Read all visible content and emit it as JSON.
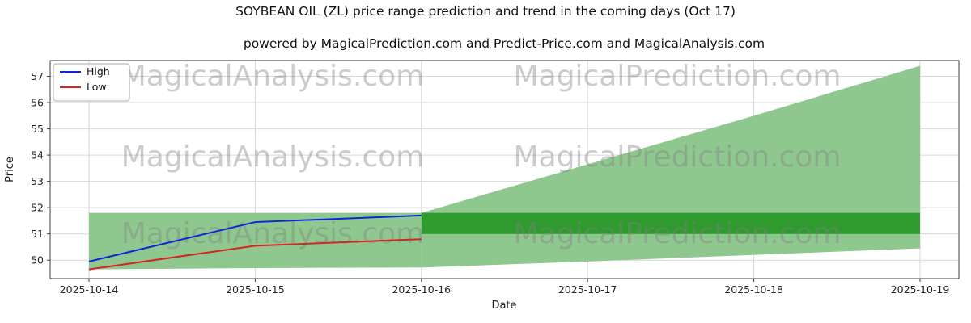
{
  "subtitle": "powered by MagicalPrediction.com and Predict-Price.com and MagicalAnalysis.com",
  "watermarks": {
    "left": "MagicalAnalysis.com",
    "right": "MagicalPrediction.com",
    "color": "#cccccc"
  },
  "legend": [
    {
      "label": "High",
      "color": "#1024d8"
    },
    {
      "label": "Low",
      "color": "#d62323"
    }
  ],
  "chart_data": {
    "type": "line",
    "title": "SOYBEAN OIL (ZL) price range prediction and trend in the coming days (Oct 17)",
    "xlabel": "Date",
    "ylabel": "Price",
    "categories": [
      "2025-10-14",
      "2025-10-15",
      "2025-10-16",
      "2025-10-17",
      "2025-10-18",
      "2025-10-19"
    ],
    "series": [
      {
        "name": "High",
        "color": "#1024d8",
        "x": [
          0,
          1,
          2
        ],
        "values": [
          49.95,
          51.45,
          51.7
        ]
      },
      {
        "name": "Low",
        "color": "#d62323",
        "x": [
          0,
          1,
          2
        ],
        "values": [
          49.65,
          50.55,
          50.8
        ]
      }
    ],
    "bands": [
      {
        "name": "history-range-band",
        "color": "#8fc88f",
        "x": [
          0,
          1,
          2
        ],
        "upper": [
          51.8,
          51.8,
          51.8
        ],
        "lower": [
          49.65,
          49.7,
          49.72
        ]
      },
      {
        "name": "forecast-fan-band",
        "color": "#8fc88f",
        "x": [
          2,
          3,
          4,
          5
        ],
        "upper": [
          51.8,
          53.65,
          55.5,
          57.4
        ],
        "lower": [
          49.72,
          49.95,
          50.2,
          50.45
        ]
      },
      {
        "name": "forecast-core-band",
        "color": "#2f9b2f",
        "x": [
          2,
          3,
          4,
          5
        ],
        "upper": [
          51.8,
          51.8,
          51.8,
          51.8
        ],
        "lower": [
          51.0,
          51.0,
          51.0,
          51.0
        ]
      }
    ],
    "ylim": [
      49.3,
      57.6
    ],
    "yticks": [
      50,
      51,
      52,
      53,
      54,
      55,
      56,
      57
    ],
    "grid": true,
    "legend_position": "upper left",
    "style": {
      "grid_color": "#d6d6d6",
      "spine_color": "#3c3c3c"
    }
  }
}
